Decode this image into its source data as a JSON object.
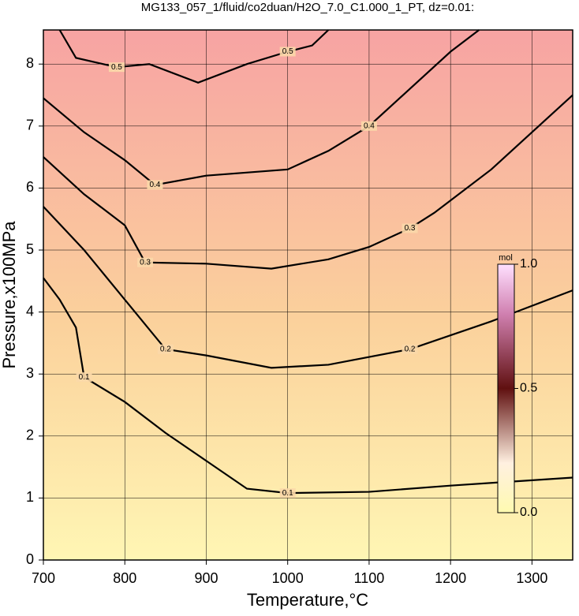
{
  "chart_data": {
    "type": "contour",
    "title": "MG133_057_1/fluid/co2duan/H2O_7.0_C1.000_1_PT, dz=0.01:",
    "x_label": "Temperature,°C",
    "y_label": "Pressure,x100MPa",
    "xlim": [
      700,
      1350
    ],
    "ylim": [
      0,
      8.55
    ],
    "xticks": [
      700,
      800,
      900,
      1000,
      1100,
      1200,
      1300
    ],
    "yticks": [
      0,
      1,
      2,
      3,
      4,
      5,
      6,
      7,
      8
    ],
    "grid": true,
    "color": "#000000",
    "series": [
      {
        "name": "0.1",
        "x": [
          700,
          720,
          740,
          750,
          800,
          850,
          900,
          950,
          1000,
          1100,
          1200,
          1350
        ],
        "values": [
          4.55,
          4.2,
          3.75,
          2.95,
          2.55,
          2.05,
          1.6,
          1.15,
          1.08,
          1.1,
          1.2,
          1.33
        ]
      },
      {
        "name": "0.2",
        "x": [
          700,
          750,
          800,
          850,
          900,
          980,
          1050,
          1150,
          1250,
          1350
        ],
        "values": [
          5.7,
          5.0,
          4.2,
          3.4,
          3.3,
          3.1,
          3.15,
          3.4,
          3.85,
          4.35
        ]
      },
      {
        "name": "0.3",
        "x": [
          700,
          750,
          800,
          825,
          900,
          980,
          1050,
          1100,
          1150,
          1180,
          1250,
          1350
        ],
        "values": [
          6.5,
          5.9,
          5.4,
          4.8,
          4.78,
          4.7,
          4.85,
          5.05,
          5.35,
          5.6,
          6.3,
          7.5
        ]
      },
      {
        "name": "0.4",
        "x": [
          700,
          750,
          800,
          837,
          900,
          1000,
          1050,
          1100,
          1150,
          1200,
          1235
        ],
        "values": [
          7.45,
          6.9,
          6.45,
          6.05,
          6.2,
          6.3,
          6.6,
          7.0,
          7.6,
          8.2,
          8.55
        ]
      },
      {
        "name": "0.5",
        "x": [
          720,
          740,
          790,
          830,
          890,
          950,
          1000,
          1030,
          1050
        ],
        "values": [
          8.55,
          8.1,
          7.95,
          8.0,
          7.7,
          8.0,
          8.2,
          8.3,
          8.55
        ]
      }
    ],
    "colorbar": {
      "label": "mol",
      "clim": [
        0,
        1
      ],
      "ticks": [
        {
          "value": 0,
          "label": "0.0"
        },
        {
          "value": 0.5,
          "label": "0.5"
        },
        {
          "value": 1,
          "label": "1.0"
        }
      ]
    }
  }
}
